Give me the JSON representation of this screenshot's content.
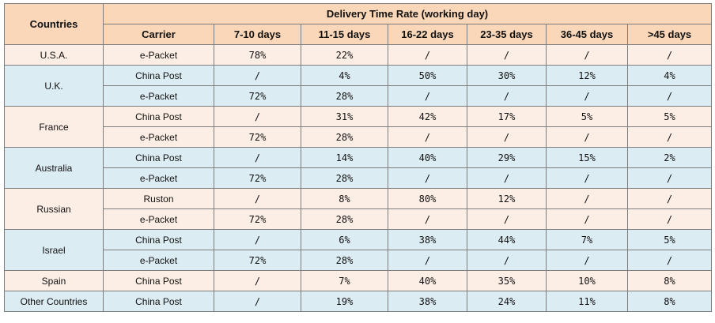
{
  "table": {
    "corner_header": "Countries",
    "group_header": "Delivery Time Rate   (working day)",
    "columns": [
      "Carrier",
      "7-10 days",
      "11-15 days",
      "16-22 days",
      "23-35 days",
      "36-45 days",
      ">45 days"
    ],
    "country_groups": [
      {
        "country": "U.S.A.",
        "tint": "peach",
        "rows": [
          {
            "carrier": "e-Packet",
            "values": [
              "78%",
              "22%",
              "/",
              "/",
              "/",
              "/"
            ]
          }
        ]
      },
      {
        "country": "U.K.",
        "tint": "blue",
        "rows": [
          {
            "carrier": "China Post",
            "values": [
              "/",
              "4%",
              "50%",
              "30%",
              "12%",
              "4%"
            ]
          },
          {
            "carrier": "e-Packet",
            "values": [
              "72%",
              "28%",
              "/",
              "/",
              "/",
              "/"
            ]
          }
        ]
      },
      {
        "country": "France",
        "tint": "peach",
        "rows": [
          {
            "carrier": "China Post",
            "values": [
              "/",
              "31%",
              "42%",
              "17%",
              "5%",
              "5%"
            ]
          },
          {
            "carrier": "e-Packet",
            "values": [
              "72%",
              "28%",
              "/",
              "/",
              "/",
              "/"
            ]
          }
        ]
      },
      {
        "country": "Australia",
        "tint": "blue",
        "rows": [
          {
            "carrier": "China Post",
            "values": [
              "/",
              "14%",
              "40%",
              "29%",
              "15%",
              "2%"
            ]
          },
          {
            "carrier": "e-Packet",
            "values": [
              "72%",
              "28%",
              "/",
              "/",
              "/",
              "/"
            ]
          }
        ]
      },
      {
        "country": "Russian",
        "tint": "peach",
        "rows": [
          {
            "carrier": "Ruston",
            "values": [
              "/",
              "8%",
              "80%",
              "12%",
              "/",
              "/"
            ]
          },
          {
            "carrier": "e-Packet",
            "values": [
              "72%",
              "28%",
              "/",
              "/",
              "/",
              "/"
            ]
          }
        ]
      },
      {
        "country": "Israel",
        "tint": "blue",
        "rows": [
          {
            "carrier": "China Post",
            "values": [
              "/",
              "6%",
              "38%",
              "44%",
              "7%",
              "5%"
            ]
          },
          {
            "carrier": "e-Packet",
            "values": [
              "72%",
              "28%",
              "/",
              "/",
              "/",
              "/"
            ]
          }
        ]
      },
      {
        "country": "Spain",
        "tint": "peach",
        "rows": [
          {
            "carrier": "China Post",
            "values": [
              "/",
              "7%",
              "40%",
              "35%",
              "10%",
              "8%"
            ]
          }
        ]
      },
      {
        "country": "Other Countries",
        "tint": "blue",
        "rows": [
          {
            "carrier": "China Post",
            "values": [
              "/",
              "19%",
              "38%",
              "24%",
              "11%",
              "8%"
            ]
          }
        ]
      }
    ]
  },
  "colors": {
    "header_fill": "#fad7b9",
    "peach_row": "#fdeee5",
    "blue_row": "#dcecf3",
    "border": "#7d7d7d"
  }
}
